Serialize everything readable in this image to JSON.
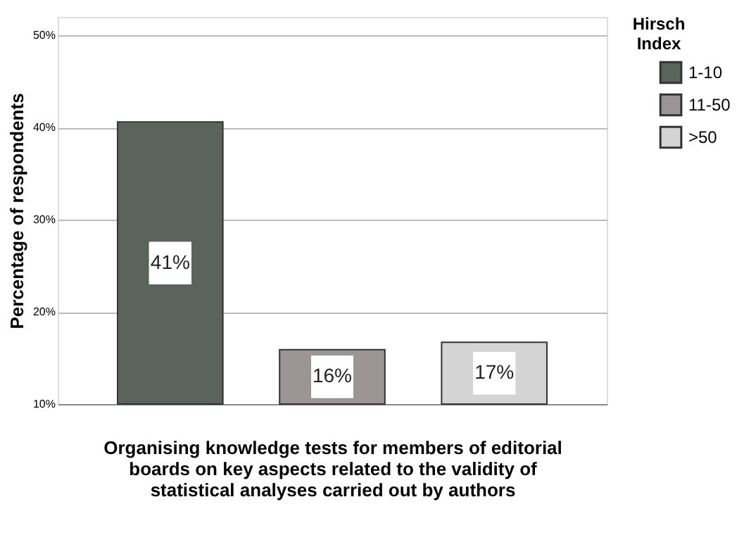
{
  "chart_data": {
    "type": "bar",
    "xlabel": "Organising knowledge tests for members of editorial boards on key aspects related to the validity of statistical analyses carried out by authors",
    "ylabel": "Percentage of respondents",
    "legend_title": "Hirsch Index",
    "categories": [
      null
    ],
    "series": [
      {
        "name": "1-10",
        "color": "#5b635d",
        "values": [
          40.6
        ],
        "value_labels": [
          "41%"
        ]
      },
      {
        "name": "11-50",
        "color": "#9c9596",
        "values": [
          15.9
        ],
        "value_labels": [
          "16%"
        ]
      },
      {
        "name": ">50",
        "color": "#d4d4d4",
        "values": [
          16.7
        ],
        "value_labels": [
          "17%"
        ]
      }
    ],
    "ylim": [
      10,
      52
    ],
    "yticks": [
      {
        "value": 10,
        "label": "10%"
      },
      {
        "value": 20,
        "label": "20%"
      },
      {
        "value": 30,
        "label": "30%"
      },
      {
        "value": 40,
        "label": "40%"
      },
      {
        "value": 50,
        "label": "50%"
      }
    ],
    "grid": "y",
    "legend": "top right",
    "tick_labels": "y"
  }
}
